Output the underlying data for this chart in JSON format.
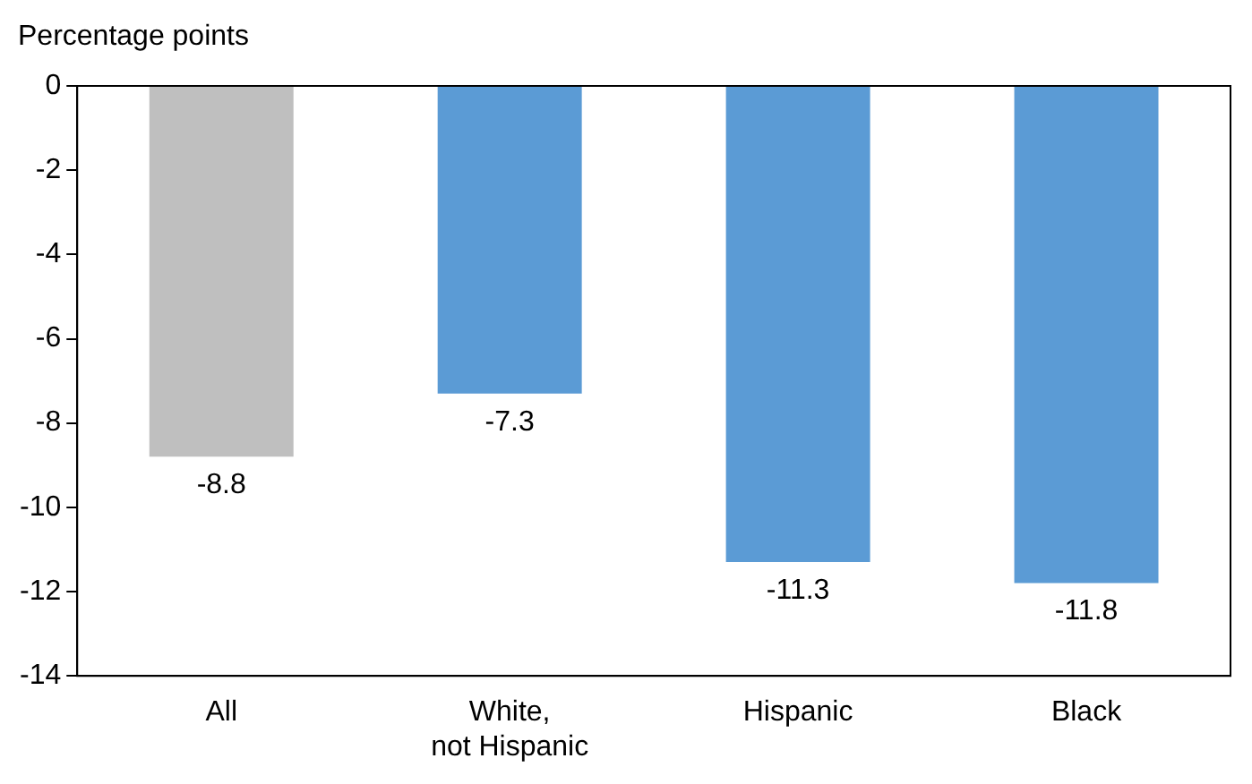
{
  "chart_data": {
    "type": "bar",
    "ylabel": "Percentage points",
    "categories": [
      "All",
      "White,\nnot Hispanic",
      "Hispanic",
      "Black"
    ],
    "values": [
      -8.8,
      -7.3,
      -11.3,
      -11.8
    ],
    "colors": [
      "#bfbfbf",
      "#5b9bd5",
      "#5b9bd5",
      "#5b9bd5"
    ],
    "ylim": [
      -14,
      0
    ],
    "yticks": [
      -14,
      -12,
      -10,
      -8,
      -6,
      -4,
      -2,
      0
    ],
    "data_labels": true,
    "grid": false,
    "legend": false
  }
}
